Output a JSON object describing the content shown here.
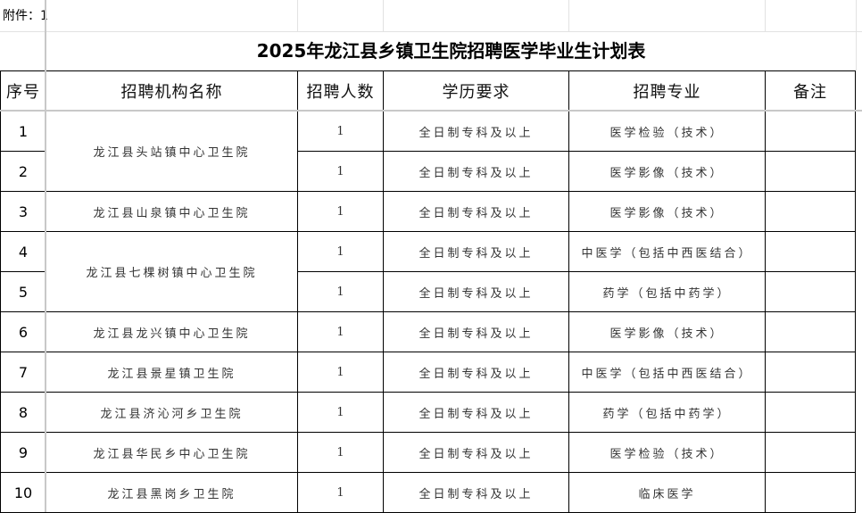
{
  "attachment_label": "附件：1",
  "title": "2025年龙江县乡镇卫生院招聘医学毕业生计划表",
  "headers": [
    "序号",
    "招聘机构名称",
    "招聘人数",
    "学历要求",
    "招聘专业",
    "备注"
  ],
  "rows": [
    {
      "seq": "1",
      "org": "龙江县头站镇中心卫生院",
      "count": "1",
      "edu": "全日制专科及以上",
      "major": "医学检验（技术）",
      "note": ""
    },
    {
      "seq": "2",
      "org": "",
      "count": "1",
      "edu": "全日制专科及以上",
      "major": "医学影像（技术）",
      "note": ""
    },
    {
      "seq": "3",
      "org": "龙江县山泉镇中心卫生院",
      "count": "1",
      "edu": "全日制专科及以上",
      "major": "医学影像（技术）",
      "note": ""
    },
    {
      "seq": "4",
      "org": "龙江县七棵树镇中心卫生院",
      "count": "1",
      "edu": "全日制专科及以上",
      "major": "中医学（包括中西医结合）",
      "note": ""
    },
    {
      "seq": "5",
      "org": "",
      "count": "1",
      "edu": "全日制专科及以上",
      "major": "药学（包括中药学）",
      "note": ""
    },
    {
      "seq": "6",
      "org": "龙江县龙兴镇中心卫生院",
      "count": "1",
      "edu": "全日制专科及以上",
      "major": "医学影像（技术）",
      "note": ""
    },
    {
      "seq": "7",
      "org": "龙江县景星镇卫生院",
      "count": "1",
      "edu": "全日制专科及以上",
      "major": "中医学（包括中西医结合）",
      "note": ""
    },
    {
      "seq": "8",
      "org": "龙江县济沁河乡卫生院",
      "count": "1",
      "edu": "全日制专科及以上",
      "major": "药学（包括中药学）",
      "note": ""
    },
    {
      "seq": "9",
      "org": "龙江县华民乡中心卫生院",
      "count": "1",
      "edu": "全日制专科及以上",
      "major": "医学检验（技术）",
      "note": ""
    },
    {
      "seq": "10",
      "org": "龙江县黑岗乡卫生院",
      "count": "1",
      "edu": "全日制专科及以上",
      "major": "临床医学",
      "note": ""
    }
  ]
}
